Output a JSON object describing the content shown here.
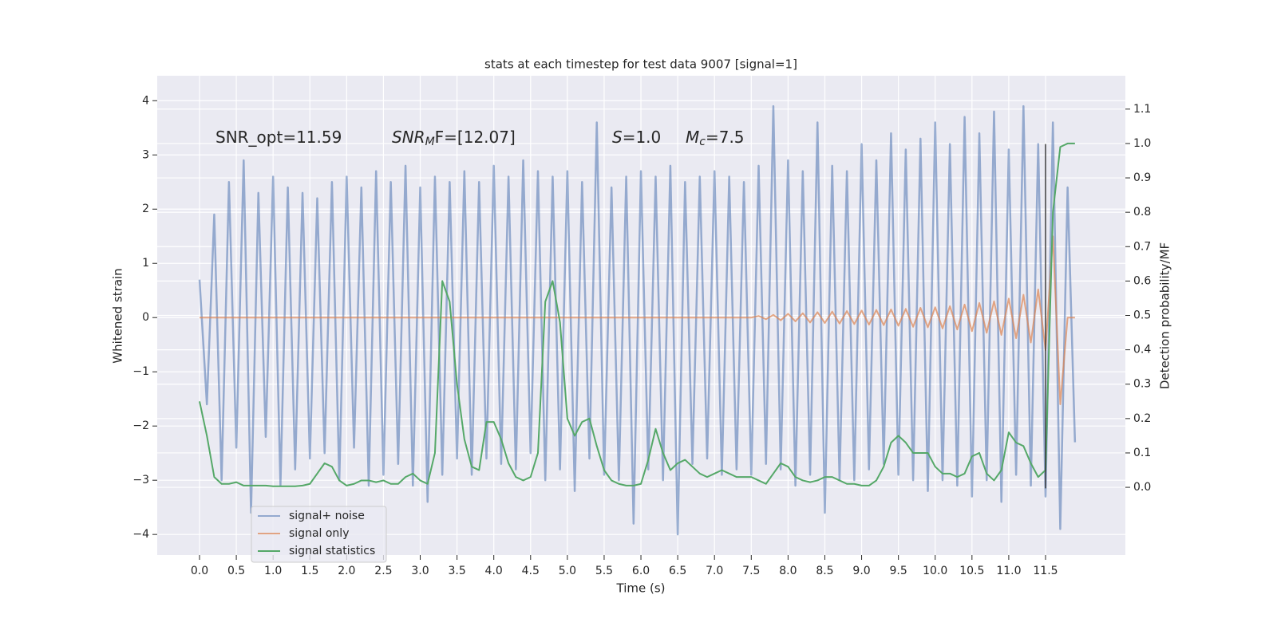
{
  "chart_data": {
    "type": "line",
    "title": "stats at each timestep for test data 9007 [signal=1]",
    "xlabel": "Time (s)",
    "ylabel": "Whitened strain",
    "y2label": "Detection probability/MF",
    "annotations": [
      [
        "SNR_opt=11.59"
      ],
      [
        "SNR",
        "M",
        "F=[12.07]"
      ],
      [
        "S",
        "=1.0"
      ],
      [
        "M",
        "c",
        "=7.5"
      ]
    ],
    "grid": true,
    "legend": "lower left",
    "xlim": [
      -0.575,
      12.585
    ],
    "ylim": [
      -4.38,
      4.46
    ],
    "y2lim": [
      -0.197,
      1.197
    ],
    "xticks": [
      {
        "value": 0,
        "label": "0.0"
      },
      {
        "value": 0.5,
        "label": "0.5"
      },
      {
        "value": 1,
        "label": "1.0"
      },
      {
        "value": 1.5,
        "label": "1.5"
      },
      {
        "value": 2,
        "label": "2.0"
      },
      {
        "value": 2.5,
        "label": "2.5"
      },
      {
        "value": 3,
        "label": "3.0"
      },
      {
        "value": 3.5,
        "label": "3.5"
      },
      {
        "value": 4,
        "label": "4.0"
      },
      {
        "value": 4.5,
        "label": "4.5"
      },
      {
        "value": 5,
        "label": "5.0"
      },
      {
        "value": 5.5,
        "label": "5.5"
      },
      {
        "value": 6,
        "label": "6.0"
      },
      {
        "value": 6.5,
        "label": "6.5"
      },
      {
        "value": 7,
        "label": "7.0"
      },
      {
        "value": 7.5,
        "label": "7.5"
      },
      {
        "value": 8,
        "label": "8.0"
      },
      {
        "value": 8.5,
        "label": "8.5"
      },
      {
        "value": 9,
        "label": "9.0"
      },
      {
        "value": 9.5,
        "label": "9.5"
      },
      {
        "value": 10,
        "label": "10.0"
      },
      {
        "value": 10.5,
        "label": "10.5"
      },
      {
        "value": 11,
        "label": "11.0"
      },
      {
        "value": 11.5,
        "label": "11.5"
      }
    ],
    "yticks": [
      {
        "value": -4,
        "label": "−4"
      },
      {
        "value": -3,
        "label": "−3"
      },
      {
        "value": -2,
        "label": "−2"
      },
      {
        "value": -1,
        "label": "−1"
      },
      0,
      1,
      2,
      3,
      4
    ],
    "y2ticks": [
      {
        "value": 0,
        "label": "0.0"
      },
      {
        "value": 0.1,
        "label": "0.1"
      },
      {
        "value": 0.2,
        "label": "0.2"
      },
      {
        "value": 0.3,
        "label": "0.3"
      },
      {
        "value": 0.4,
        "label": "0.4"
      },
      {
        "value": 0.5,
        "label": "0.5"
      },
      {
        "value": 0.6,
        "label": "0.6"
      },
      {
        "value": 0.7,
        "label": "0.7"
      },
      {
        "value": 0.8,
        "label": "0.8"
      },
      {
        "value": 0.9,
        "label": "0.9"
      },
      {
        "value": 1,
        "label": "1.0"
      },
      {
        "value": 1.1,
        "label": "1.1"
      }
    ],
    "x": [
      0,
      0.1,
      0.2,
      0.3,
      0.4,
      0.5,
      0.6,
      0.7,
      0.8,
      0.9,
      1,
      1.1,
      1.2,
      1.3,
      1.4,
      1.5,
      1.6,
      1.7,
      1.8,
      1.9,
      2,
      2.1,
      2.2,
      2.3,
      2.4,
      2.5,
      2.6,
      2.7,
      2.8,
      2.9,
      3,
      3.1,
      3.2,
      3.3,
      3.4,
      3.5,
      3.6,
      3.7,
      3.8,
      3.9,
      4,
      4.1,
      4.2,
      4.3,
      4.4,
      4.5,
      4.6,
      4.7,
      4.8,
      4.9,
      5,
      5.1,
      5.2,
      5.3,
      5.4,
      5.5,
      5.6,
      5.7,
      5.8,
      5.9,
      6,
      6.1,
      6.2,
      6.3,
      6.4,
      6.5,
      6.6,
      6.7,
      6.8,
      6.9,
      7,
      7.1,
      7.2,
      7.3,
      7.4,
      7.5,
      7.6,
      7.7,
      7.8,
      7.9,
      8,
      8.1,
      8.2,
      8.3,
      8.4,
      8.5,
      8.6,
      8.7,
      8.8,
      8.9,
      9,
      9.1,
      9.2,
      9.3,
      9.4,
      9.5,
      9.6,
      9.7,
      9.8,
      9.9,
      10,
      10.1,
      10.2,
      10.3,
      10.4,
      10.5,
      10.6,
      10.7,
      10.8,
      10.9,
      11,
      11.1,
      11.2,
      11.3,
      11.4,
      11.5,
      11.6,
      11.7,
      11.8,
      11.9
    ],
    "series": [
      {
        "name": "signal+ noise",
        "color": "#4c72b0",
        "values": [
          0.7,
          -1.6,
          1.9,
          -3.0,
          2.5,
          -2.4,
          2.9,
          -3.6,
          2.3,
          -2.2,
          2.6,
          -3.1,
          2.4,
          -2.8,
          2.3,
          -2.6,
          2.2,
          -2.5,
          2.5,
          -3.0,
          2.6,
          -2.4,
          2.4,
          -3.1,
          2.7,
          -2.9,
          2.5,
          -2.7,
          2.8,
          -3.1,
          2.4,
          -3.4,
          2.6,
          -2.9,
          2.5,
          -2.6,
          2.7,
          -2.9,
          2.5,
          -2.6,
          2.8,
          -2.7,
          2.6,
          -2.8,
          2.9,
          -2.5,
          2.7,
          -3.0,
          2.6,
          -2.8,
          2.7,
          -3.2,
          2.5,
          -2.6,
          3.6,
          -2.9,
          2.4,
          -3.0,
          2.6,
          -3.8,
          2.7,
          -2.8,
          2.6,
          -3.0,
          2.8,
          -4.0,
          2.5,
          -2.7,
          2.6,
          -2.6,
          2.7,
          -2.9,
          2.6,
          -2.8,
          2.5,
          -2.9,
          2.8,
          -2.7,
          3.9,
          -2.8,
          2.9,
          -3.1,
          2.7,
          -2.9,
          3.6,
          -3.6,
          2.8,
          -3.0,
          2.7,
          -3.0,
          3.2,
          -2.8,
          2.9,
          -2.7,
          3.4,
          -2.9,
          3.1,
          -3.0,
          3.3,
          -3.2,
          3.6,
          -3.0,
          3.2,
          -3.1,
          3.7,
          -3.3,
          3.4,
          -3.0,
          3.8,
          -3.4,
          3.1,
          -2.9,
          3.9,
          -3.1,
          3.2,
          -3.3,
          3.6,
          -3.9,
          2.4,
          -2.3
        ]
      },
      {
        "name": "signal only",
        "color": "#dd8452",
        "values": [
          0,
          0,
          0,
          0,
          0,
          0,
          0,
          0,
          0,
          0,
          0,
          0,
          0,
          0,
          0,
          0,
          0,
          0,
          0,
          0,
          0,
          0,
          0,
          0,
          0,
          0,
          0,
          0,
          0,
          0,
          0,
          0,
          0,
          0,
          0,
          0,
          0,
          0,
          0,
          0,
          0,
          0,
          0,
          0,
          0,
          0,
          0,
          0,
          0,
          0,
          0,
          0,
          0,
          0,
          0,
          0,
          0,
          0,
          0,
          0,
          0,
          0,
          0,
          0,
          0,
          0,
          0,
          0,
          0,
          0,
          0,
          0,
          0,
          0,
          0,
          0,
          0.03,
          -0.03,
          0.05,
          -0.05,
          0.07,
          -0.07,
          0.08,
          -0.09,
          0.1,
          -0.1,
          0.11,
          -0.11,
          0.12,
          -0.12,
          0.13,
          -0.13,
          0.14,
          -0.14,
          0.15,
          -0.15,
          0.16,
          -0.17,
          0.18,
          -0.18,
          0.19,
          -0.2,
          0.21,
          -0.22,
          0.24,
          -0.25,
          0.27,
          -0.28,
          0.3,
          -0.32,
          0.35,
          -0.38,
          0.42,
          -0.46,
          0.52,
          -0.6,
          1.5,
          -1.6,
          0,
          0
        ]
      },
      {
        "name": "signal statistics",
        "color": "#55a868",
        "axis": "y2",
        "values": [
          0.25,
          0.15,
          0.03,
          0.01,
          0.01,
          0.015,
          0.005,
          0.005,
          0.005,
          0.005,
          0.003,
          0.003,
          0.003,
          0.003,
          0.005,
          0.01,
          0.04,
          0.07,
          0.06,
          0.02,
          0.005,
          0.01,
          0.02,
          0.02,
          0.015,
          0.02,
          0.01,
          0.01,
          0.03,
          0.04,
          0.02,
          0.01,
          0.1,
          0.6,
          0.54,
          0.3,
          0.14,
          0.06,
          0.05,
          0.19,
          0.19,
          0.14,
          0.07,
          0.03,
          0.02,
          0.03,
          0.1,
          0.54,
          0.6,
          0.48,
          0.2,
          0.15,
          0.19,
          0.2,
          0.12,
          0.05,
          0.02,
          0.01,
          0.005,
          0.005,
          0.01,
          0.08,
          0.17,
          0.1,
          0.05,
          0.07,
          0.08,
          0.06,
          0.04,
          0.03,
          0.04,
          0.05,
          0.04,
          0.03,
          0.03,
          0.03,
          0.02,
          0.01,
          0.04,
          0.07,
          0.06,
          0.03,
          0.02,
          0.015,
          0.02,
          0.03,
          0.03,
          0.02,
          0.01,
          0.01,
          0.005,
          0.005,
          0.02,
          0.06,
          0.13,
          0.15,
          0.13,
          0.1,
          0.1,
          0.1,
          0.06,
          0.04,
          0.04,
          0.03,
          0.04,
          0.09,
          0.1,
          0.04,
          0.02,
          0.05,
          0.16,
          0.13,
          0.12,
          0.07,
          0.03,
          0.05,
          0.8,
          0.99,
          1.0,
          1.0
        ]
      }
    ],
    "vline": {
      "x": 11.5,
      "ymin": -3.15,
      "ymax": 3.2,
      "color": "#333333"
    }
  }
}
